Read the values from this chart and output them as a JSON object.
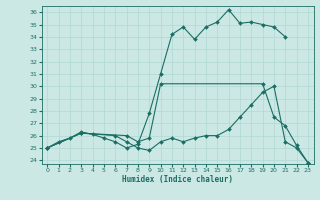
{
  "xlabel": "Humidex (Indice chaleur)",
  "bg_color": "#cce8e4",
  "line_color": "#1a6e64",
  "grid_color": "#b0d8d4",
  "xlim_min": -0.5,
  "xlim_max": 23.5,
  "ylim_min": 23.7,
  "ylim_max": 36.5,
  "xticks": [
    0,
    1,
    2,
    3,
    4,
    5,
    6,
    7,
    8,
    9,
    10,
    11,
    12,
    13,
    14,
    15,
    16,
    17,
    18,
    19,
    20,
    21,
    22,
    23
  ],
  "yticks": [
    24,
    25,
    26,
    27,
    28,
    29,
    30,
    31,
    32,
    33,
    34,
    35,
    36
  ],
  "line1_x": [
    0,
    1,
    2,
    3,
    4,
    5,
    6,
    7,
    8,
    9,
    10,
    11,
    12,
    13,
    14,
    15,
    16,
    17,
    18,
    19,
    20,
    21
  ],
  "line1_y": [
    25,
    25.5,
    25.8,
    26.3,
    26.1,
    25.8,
    25.5,
    25.0,
    25.3,
    27.8,
    31.0,
    34.2,
    34.8,
    33.8,
    34.8,
    35.2,
    36.2,
    35.1,
    35.2,
    35.0,
    34.8,
    34.0
  ],
  "line2_x": [
    0,
    3,
    7,
    8,
    9,
    10,
    19,
    20,
    21,
    22,
    23
  ],
  "line2_y": [
    25,
    26.2,
    26.0,
    25.5,
    25.8,
    30.2,
    30.2,
    27.5,
    26.8,
    25.2,
    23.8
  ],
  "line3_x": [
    0,
    3,
    6,
    7,
    8,
    9,
    10,
    11,
    12,
    13,
    14,
    15,
    16,
    17,
    18,
    19,
    20,
    21,
    22,
    23
  ],
  "line3_y": [
    25,
    26.2,
    26.0,
    25.5,
    25.0,
    24.8,
    25.5,
    25.8,
    25.5,
    25.8,
    26.0,
    26.0,
    26.5,
    27.5,
    28.5,
    29.5,
    30.0,
    25.5,
    25.0,
    23.8
  ]
}
